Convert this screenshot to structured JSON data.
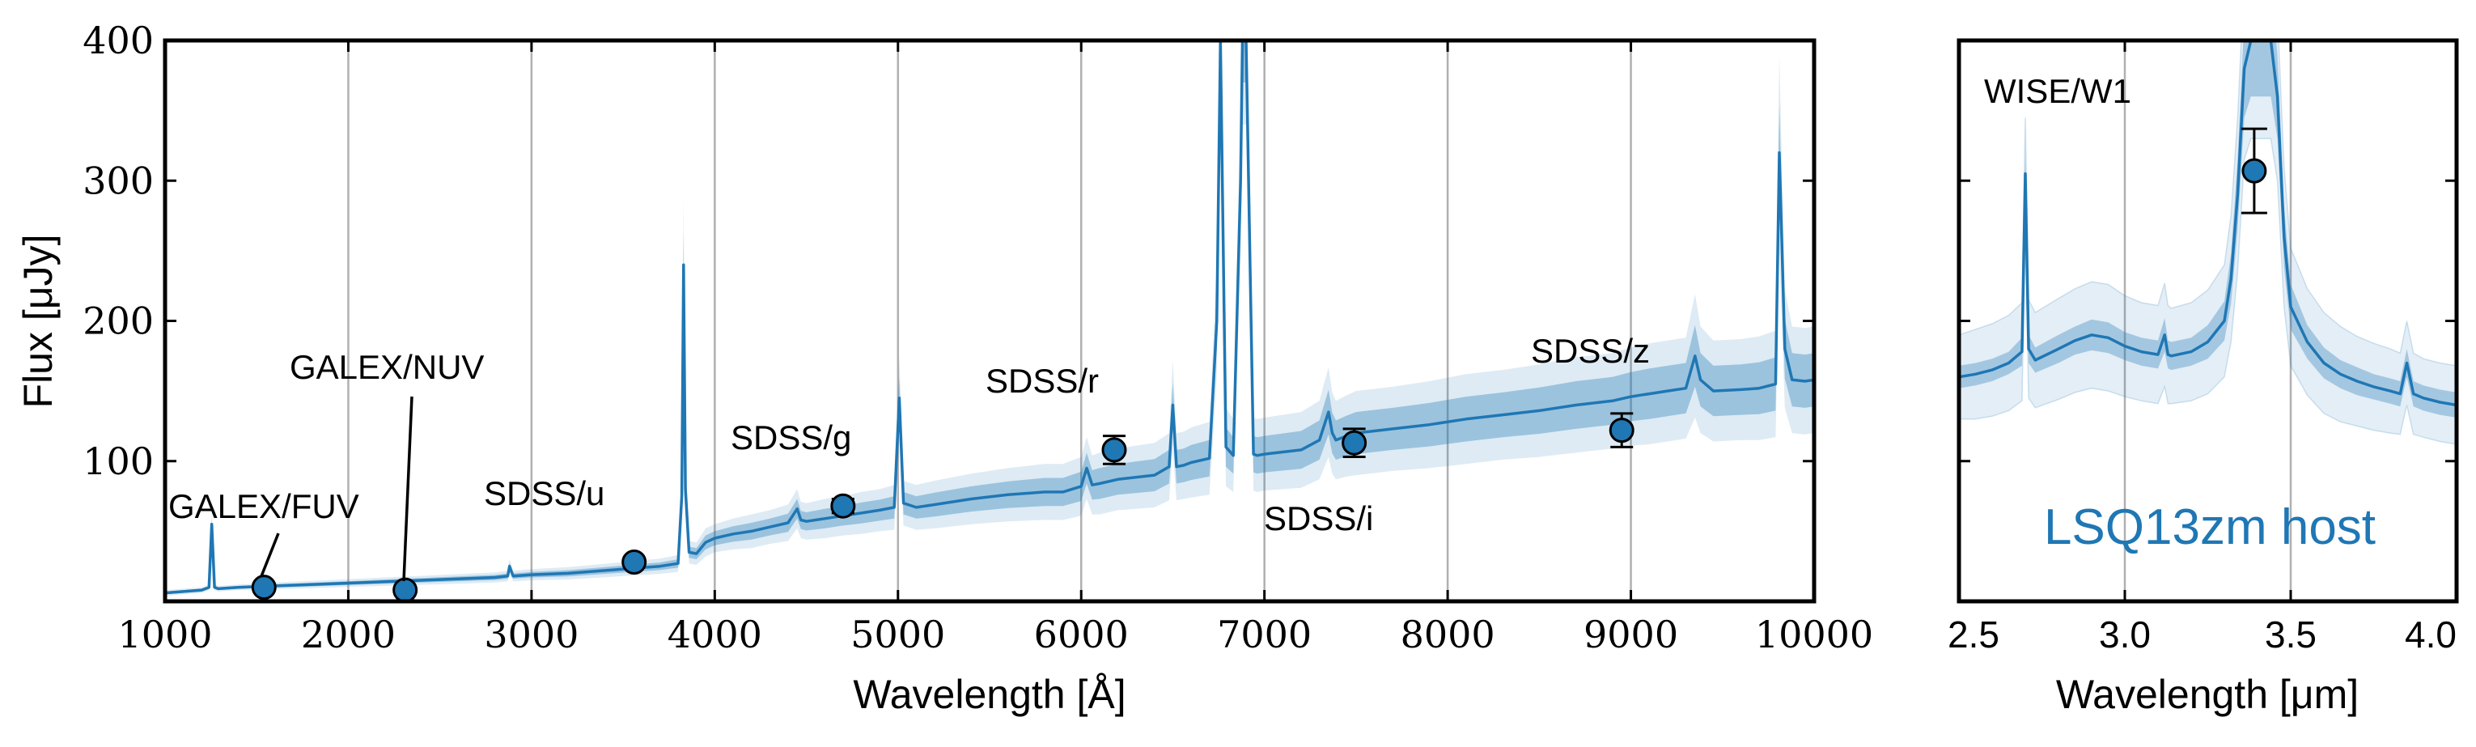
{
  "chart_data": [
    {
      "type": "line",
      "title": "",
      "xlabel": "Wavelength [Å]",
      "ylabel": "Flux [μJy]",
      "xlim": [
        1000,
        10000
      ],
      "ylim": [
        0,
        400
      ],
      "xticks": [
        1000,
        2000,
        3000,
        4000,
        5000,
        6000,
        7000,
        8000,
        9000,
        10000
      ],
      "xtick_labels": [
        "1000",
        "2000",
        "3000",
        "4000",
        "5000",
        "6000",
        "7000",
        "8000",
        "9000",
        "10000"
      ],
      "yticks": [
        100,
        200,
        300,
        400
      ],
      "ytick_labels": [
        "100",
        "200",
        "300",
        "400"
      ],
      "grid": "vertical",
      "color": "#1f77b4",
      "model_spectrum": {
        "x": [
          1000,
          1100,
          1200,
          1240,
          1255,
          1270,
          1290,
          1400,
          1600,
          1800,
          2000,
          2200,
          2400,
          2600,
          2800,
          2870,
          2880,
          2900,
          3000,
          3200,
          3400,
          3600,
          3700,
          3800,
          3820,
          3830,
          3840,
          3860,
          3900,
          3950,
          4000,
          4100,
          4200,
          4300,
          4400,
          4450,
          4470,
          4500,
          4600,
          4700,
          4800,
          4900,
          4980,
          5007,
          5030,
          5100,
          5200,
          5400,
          5600,
          5800,
          5900,
          6000,
          6030,
          6060,
          6100,
          6200,
          6400,
          6480,
          6500,
          6520,
          6560,
          6600,
          6700,
          6740,
          6760,
          6790,
          6830,
          6870,
          6880,
          6900,
          6920,
          6940,
          6960,
          7000,
          7200,
          7300,
          7350,
          7370,
          7390,
          7450,
          7500,
          7700,
          7900,
          8100,
          8300,
          8500,
          8700,
          8900,
          9000,
          9100,
          9200,
          9300,
          9350,
          9380,
          9450,
          9600,
          9700,
          9790,
          9810,
          9840,
          9880,
          9950,
          10000
        ],
        "flux": [
          6,
          7,
          8,
          10,
          55,
          10,
          9,
          10,
          11,
          12,
          13,
          14,
          15,
          16,
          17,
          18,
          25,
          18,
          19,
          20,
          22,
          24,
          25,
          27,
          75,
          240,
          80,
          35,
          34,
          42,
          45,
          48,
          50,
          53,
          56,
          66,
          58,
          57,
          59,
          61,
          63,
          65,
          67,
          145,
          70,
          67,
          69,
          73,
          76,
          78,
          78,
          82,
          95,
          83,
          84,
          87,
          90,
          96,
          140,
          96,
          97,
          99,
          102,
          200,
          400,
          110,
          104,
          300,
          400,
          400,
          250,
          105,
          104,
          105,
          108,
          115,
          135,
          120,
          115,
          118,
          120,
          123,
          126,
          130,
          133,
          136,
          140,
          143,
          146,
          148,
          150,
          152,
          175,
          158,
          150,
          151,
          152,
          155,
          320,
          180,
          158,
          157,
          158
        ],
        "uncertainty": [
          1,
          1,
          1,
          1,
          4,
          1,
          1,
          1,
          1.2,
          1.3,
          1.4,
          1.5,
          1.6,
          1.7,
          1.8,
          1.9,
          2.5,
          1.9,
          2,
          2.2,
          2.4,
          2.6,
          2.7,
          3,
          8,
          25,
          8,
          4,
          4,
          5,
          5,
          5.5,
          6,
          6,
          6.5,
          7,
          6.5,
          6.5,
          7,
          7,
          7.5,
          7.5,
          8,
          15,
          8,
          8,
          8.5,
          9,
          9.5,
          10,
          10,
          10.5,
          11,
          10.5,
          11,
          11,
          11.5,
          12,
          16,
          12,
          12,
          12.5,
          13,
          20,
          30,
          14,
          13,
          25,
          30,
          30,
          22,
          13,
          13,
          13,
          13.5,
          14,
          16,
          14.5,
          14,
          14.5,
          15,
          15,
          15.5,
          16,
          16,
          16.5,
          17,
          17,
          17.5,
          18,
          18,
          18,
          22,
          19,
          18,
          18,
          18.5,
          19,
          35,
          21,
          19,
          19,
          19
        ]
      },
      "photometry": [
        {
          "label": "GALEX/FUV",
          "x": 1540,
          "y": 10,
          "yerr": 1
        },
        {
          "label": "GALEX/NUV",
          "x": 2310,
          "y": 8,
          "yerr": 1
        },
        {
          "label": "SDSS/u",
          "x": 3560,
          "y": 28,
          "yerr": 2
        },
        {
          "label": "SDSS/g",
          "x": 4700,
          "y": 68,
          "yerr": 5
        },
        {
          "label": "SDSS/r",
          "x": 6180,
          "y": 108,
          "yerr": 10
        },
        {
          "label": "SDSS/i",
          "x": 7490,
          "y": 113,
          "yerr": 10
        },
        {
          "label": "SDSS/z",
          "x": 8950,
          "y": 122,
          "yerr": 12
        }
      ]
    },
    {
      "type": "line",
      "title": "",
      "xlabel": "Wavelength [μm]",
      "ylabel": "",
      "xlim": [
        2.5,
        4.0
      ],
      "ylim": [
        0,
        400
      ],
      "xticks": [
        2.5,
        3.0,
        3.5,
        4.0
      ],
      "xtick_labels": [
        "2.5",
        "3.0",
        "3.5",
        "4.0"
      ],
      "yticks": [
        100,
        200,
        300,
        400
      ],
      "grid": "vertical",
      "annotation": "LSQ13zm host",
      "color": "#1f77b4",
      "model_spectrum": {
        "x": [
          2.5,
          2.55,
          2.6,
          2.65,
          2.69,
          2.7,
          2.71,
          2.73,
          2.8,
          2.85,
          2.9,
          2.95,
          3.0,
          3.05,
          3.1,
          3.12,
          3.13,
          3.14,
          3.2,
          3.25,
          3.3,
          3.32,
          3.34,
          3.36,
          3.38,
          3.4,
          3.42,
          3.44,
          3.46,
          3.48,
          3.5,
          3.55,
          3.6,
          3.65,
          3.7,
          3.75,
          3.8,
          3.83,
          3.85,
          3.87,
          3.9,
          3.95,
          4.0
        ],
        "flux": [
          160,
          162,
          165,
          170,
          178,
          305,
          180,
          172,
          180,
          186,
          190,
          188,
          182,
          178,
          176,
          190,
          176,
          175,
          178,
          185,
          200,
          230,
          290,
          380,
          400,
          400,
          400,
          400,
          360,
          260,
          210,
          185,
          170,
          162,
          157,
          153,
          150,
          148,
          170,
          148,
          145,
          142,
          140
        ],
        "band_inner": [
          8,
          8,
          8,
          8,
          10,
          12,
          10,
          9,
          10,
          10,
          11,
          11,
          10,
          10,
          10,
          12,
          10,
          10,
          10,
          12,
          14,
          18,
          25,
          35,
          40,
          40,
          40,
          40,
          30,
          22,
          16,
          12,
          11,
          10,
          10,
          9,
          9,
          9,
          10,
          9,
          9,
          9,
          9
        ],
        "band_outer": [
          30,
          32,
          33,
          34,
          35,
          40,
          35,
          34,
          36,
          37,
          38,
          38,
          36,
          35,
          35,
          37,
          35,
          34,
          35,
          37,
          40,
          45,
          55,
          65,
          70,
          70,
          70,
          70,
          60,
          50,
          42,
          38,
          36,
          34,
          32,
          31,
          30,
          29,
          30,
          29,
          28,
          28,
          28
        ]
      },
      "photometry": [
        {
          "label": "WISE/W1",
          "x": 3.39,
          "y": 307,
          "yerr": 30
        }
      ]
    }
  ]
}
